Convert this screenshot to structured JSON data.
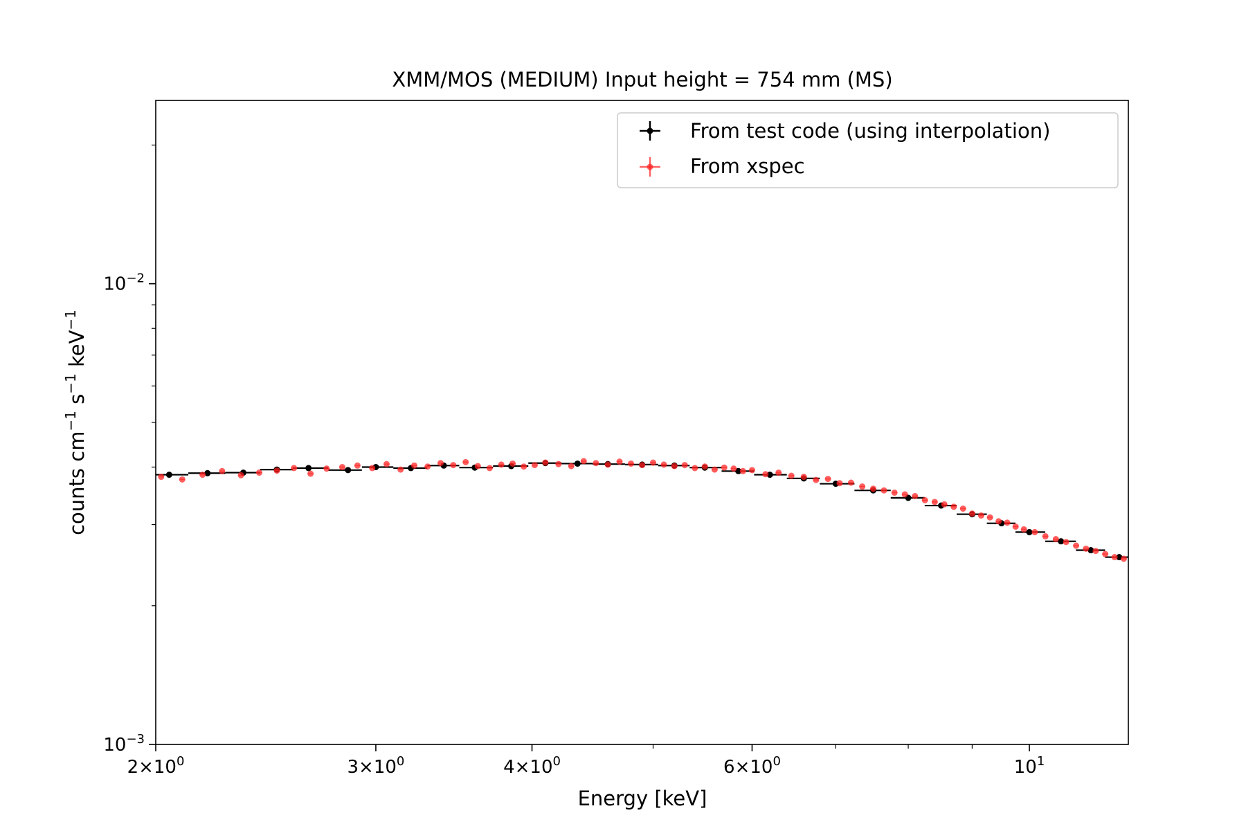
{
  "chart_data": {
    "type": "scatter",
    "title": "XMM/MOS (MEDIUM) Input height = 754 mm (MS)",
    "xlabel": "Energy [keV]",
    "ylabel": {
      "base": "counts cm",
      "exp1": "−1",
      "mid": " s",
      "exp2": "−1",
      "end": " keV",
      "exp3": "−1"
    },
    "xscale": "log",
    "yscale": "log",
    "xlim": [
      2.0,
      12.0
    ],
    "ylim": [
      0.001,
      0.025
    ],
    "x_major_ticks": [
      {
        "value": 2,
        "mant": "2",
        "sep": "×",
        "base": "10",
        "exp": "0"
      },
      {
        "value": 3,
        "mant": "3",
        "sep": "×",
        "base": "10",
        "exp": "0"
      },
      {
        "value": 4,
        "mant": "4",
        "sep": "×",
        "base": "10",
        "exp": "0"
      },
      {
        "value": 6,
        "mant": "6",
        "sep": "×",
        "base": "10",
        "exp": "0"
      },
      {
        "value": 10,
        "mant": "",
        "sep": "",
        "base": "10",
        "exp": "1"
      }
    ],
    "x_minor_ticks": [
      5,
      7,
      8,
      9
    ],
    "y_major_ticks": [
      {
        "value": 0.001,
        "base": "10",
        "exp": "−3"
      },
      {
        "value": 0.01,
        "base": "10",
        "exp": "−2"
      }
    ],
    "y_minor_ticks": [
      0.002,
      0.003,
      0.004,
      0.005,
      0.006,
      0.007,
      0.008,
      0.009,
      0.02
    ],
    "legend": {
      "position": "upper-right",
      "entries": [
        {
          "label": "From test code (using interpolation)",
          "color": "#000000"
        },
        {
          "label": "From xspec",
          "color": "#ff2020"
        }
      ]
    },
    "series": [
      {
        "name": "From test code (using interpolation)",
        "color": "#000000",
        "x": [
          2.05,
          2.2,
          2.35,
          2.5,
          2.65,
          2.85,
          3.0,
          3.2,
          3.4,
          3.6,
          3.85,
          4.1,
          4.35,
          4.6,
          4.9,
          5.2,
          5.5,
          5.85,
          6.2,
          6.6,
          7.0,
          7.5,
          8.0,
          8.5,
          9.0,
          9.5,
          10.0,
          10.6,
          11.2,
          11.8
        ],
        "y": [
          0.00385,
          0.00388,
          0.00389,
          0.00395,
          0.00398,
          0.00394,
          0.004,
          0.00398,
          0.00403,
          0.00399,
          0.00402,
          0.00408,
          0.00407,
          0.00406,
          0.00405,
          0.00403,
          0.00399,
          0.00392,
          0.00385,
          0.00378,
          0.00368,
          0.00356,
          0.00343,
          0.0033,
          0.00316,
          0.00302,
          0.00289,
          0.00276,
          0.00264,
          0.00255
        ]
      },
      {
        "name": "From xspec",
        "color": "#ff2020",
        "x": [
          2.02,
          2.1,
          2.18,
          2.26,
          2.34,
          2.42,
          2.5,
          2.58,
          2.66,
          2.74,
          2.82,
          2.9,
          2.98,
          3.06,
          3.14,
          3.22,
          3.3,
          3.38,
          3.46,
          3.54,
          3.62,
          3.7,
          3.78,
          3.86,
          3.94,
          4.02,
          4.1,
          4.2,
          4.3,
          4.4,
          4.5,
          4.6,
          4.7,
          4.8,
          4.9,
          5.0,
          5.1,
          5.2,
          5.3,
          5.4,
          5.5,
          5.6,
          5.7,
          5.8,
          5.9,
          6.0,
          6.15,
          6.3,
          6.45,
          6.6,
          6.75,
          6.9,
          7.05,
          7.2,
          7.35,
          7.5,
          7.65,
          7.8,
          7.95,
          8.1,
          8.25,
          8.4,
          8.55,
          8.7,
          8.85,
          9.0,
          9.15,
          9.3,
          9.45,
          9.6,
          9.75,
          9.9,
          10.1,
          10.3,
          10.5,
          10.7,
          10.9,
          11.1,
          11.3,
          11.5,
          11.7,
          11.9
        ],
        "y": [
          0.00381,
          0.00376,
          0.00385,
          0.00392,
          0.00384,
          0.00389,
          0.00393,
          0.00398,
          0.00387,
          0.00397,
          0.004,
          0.00403,
          0.00398,
          0.00406,
          0.00395,
          0.00403,
          0.00401,
          0.00408,
          0.00404,
          0.0041,
          0.00402,
          0.00398,
          0.00405,
          0.00407,
          0.00401,
          0.00404,
          0.00409,
          0.00406,
          0.00402,
          0.00412,
          0.00408,
          0.00405,
          0.00411,
          0.00407,
          0.00404,
          0.00409,
          0.00405,
          0.00402,
          0.00404,
          0.00398,
          0.00401,
          0.00395,
          0.00399,
          0.00397,
          0.00392,
          0.00394,
          0.00386,
          0.00389,
          0.00383,
          0.00381,
          0.00375,
          0.00377,
          0.00369,
          0.0037,
          0.00363,
          0.00359,
          0.00356,
          0.00352,
          0.00349,
          0.00346,
          0.00339,
          0.00336,
          0.00332,
          0.00328,
          0.00325,
          0.00317,
          0.00314,
          0.00311,
          0.00305,
          0.00303,
          0.00297,
          0.00293,
          0.00289,
          0.00283,
          0.00279,
          0.00275,
          0.0027,
          0.00266,
          0.00263,
          0.00259,
          0.00255,
          0.00253
        ]
      }
    ]
  }
}
